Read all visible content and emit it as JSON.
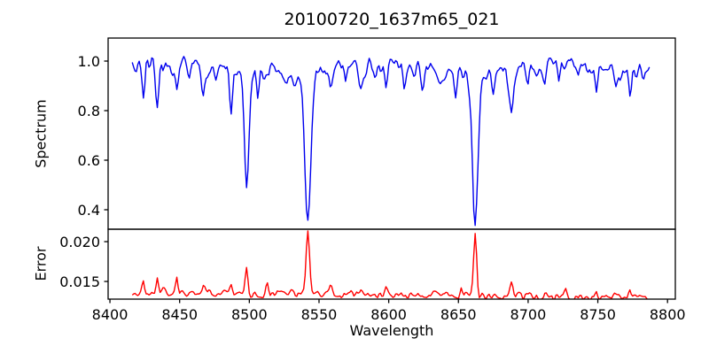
{
  "figure": {
    "title": "20100720_1637m65_021",
    "background": "#ffffff",
    "text_color": "#000000",
    "spine_color": "#000000"
  },
  "x_axis": {
    "label": "Wavelength",
    "xlim": [
      8398.7,
      8805.6
    ],
    "ticks": [
      8400,
      8450,
      8500,
      8550,
      8600,
      8650,
      8700,
      8750,
      8800
    ],
    "tick_labels": [
      "8400",
      "8450",
      "8500",
      "8550",
      "8600",
      "8650",
      "8700",
      "8750",
      "8800"
    ]
  },
  "chart_data": [
    {
      "type": "line",
      "name": "spectrum",
      "ylabel": "Spectrum",
      "color": "#0000ee",
      "ylim": [
        0.3214,
        1.0929
      ],
      "yticks": [
        0.4,
        0.6,
        0.8,
        1.0
      ],
      "ytick_labels": [
        "0.4",
        "0.6",
        "0.8",
        "1.0"
      ],
      "x_start": 8416,
      "x_end": 8787,
      "x_step": 1,
      "continuum": 0.975,
      "wobble": [
        0.012,
        0.21,
        0.009,
        0.047
      ],
      "noise_amplitude": 0.05,
      "seed": 20100720,
      "absorption_lines": [
        [
          8424,
          0.12,
          1.0
        ],
        [
          8434,
          0.17,
          1.0
        ],
        [
          8448,
          0.1,
          1.0
        ],
        [
          8457,
          0.05,
          0.9
        ],
        [
          8467,
          0.08,
          1.0
        ],
        [
          8476,
          0.06,
          0.9
        ],
        [
          8487,
          0.16,
          1.1
        ],
        [
          8498,
          0.49,
          1.6
        ],
        [
          8506,
          0.1,
          1.0
        ],
        [
          8514,
          0.06,
          0.9
        ],
        [
          8527,
          0.05,
          0.9
        ],
        [
          8542,
          0.63,
          2.1
        ],
        [
          8558,
          0.09,
          1.0
        ],
        [
          8569,
          0.05,
          0.9
        ],
        [
          8580,
          0.09,
          1.0
        ],
        [
          8590,
          0.05,
          0.9
        ],
        [
          8598,
          0.1,
          1.0
        ],
        [
          8611,
          0.08,
          1.0
        ],
        [
          8624,
          0.07,
          1.0
        ],
        [
          8637,
          0.05,
          0.9
        ],
        [
          8648,
          0.09,
          1.0
        ],
        [
          8662,
          0.625,
          2.0
        ],
        [
          8675,
          0.09,
          1.0
        ],
        [
          8688,
          0.185,
          1.5
        ],
        [
          8700,
          0.06,
          0.9
        ],
        [
          8712,
          0.1,
          1.0
        ],
        [
          8722,
          0.05,
          0.9
        ],
        [
          8736,
          0.06,
          0.9
        ],
        [
          8749,
          0.1,
          1.0
        ],
        [
          8763,
          0.06,
          0.9
        ],
        [
          8773,
          0.09,
          1.0
        ],
        [
          8783,
          0.05,
          0.9
        ]
      ]
    },
    {
      "type": "line",
      "name": "error",
      "ylabel": "Error",
      "color": "#ff0000",
      "ylim": [
        0.01278,
        0.02156
      ],
      "yticks": [
        0.015,
        0.02
      ],
      "ytick_labels": [
        "0.015",
        "0.020"
      ],
      "x_start": 8416,
      "x_end": 8787,
      "x_step": 1,
      "baseline_start": 0.01365,
      "baseline_end": 0.01305,
      "noise_amplitude": 0.0007,
      "seed": 1637,
      "emission_peaks": [
        [
          8424,
          0.0013,
          0.8
        ],
        [
          8434,
          0.0019,
          0.8
        ],
        [
          8448,
          0.0022,
          0.8
        ],
        [
          8467,
          0.0009,
          0.8
        ],
        [
          8487,
          0.0009,
          0.9
        ],
        [
          8498,
          0.0036,
          1.0
        ],
        [
          8513,
          0.001,
          0.9
        ],
        [
          8542,
          0.0076,
          1.2
        ],
        [
          8558,
          0.0011,
          0.9
        ],
        [
          8580,
          0.0007,
          0.9
        ],
        [
          8598,
          0.0011,
          0.9
        ],
        [
          8652,
          0.0009,
          0.9
        ],
        [
          8662,
          0.0075,
          1.1
        ],
        [
          8688,
          0.0013,
          1.0
        ],
        [
          8712,
          0.0007,
          0.9
        ],
        [
          8727,
          0.0008,
          0.9
        ],
        [
          8749,
          0.0007,
          0.9
        ],
        [
          8773,
          0.0008,
          0.9
        ]
      ]
    }
  ]
}
